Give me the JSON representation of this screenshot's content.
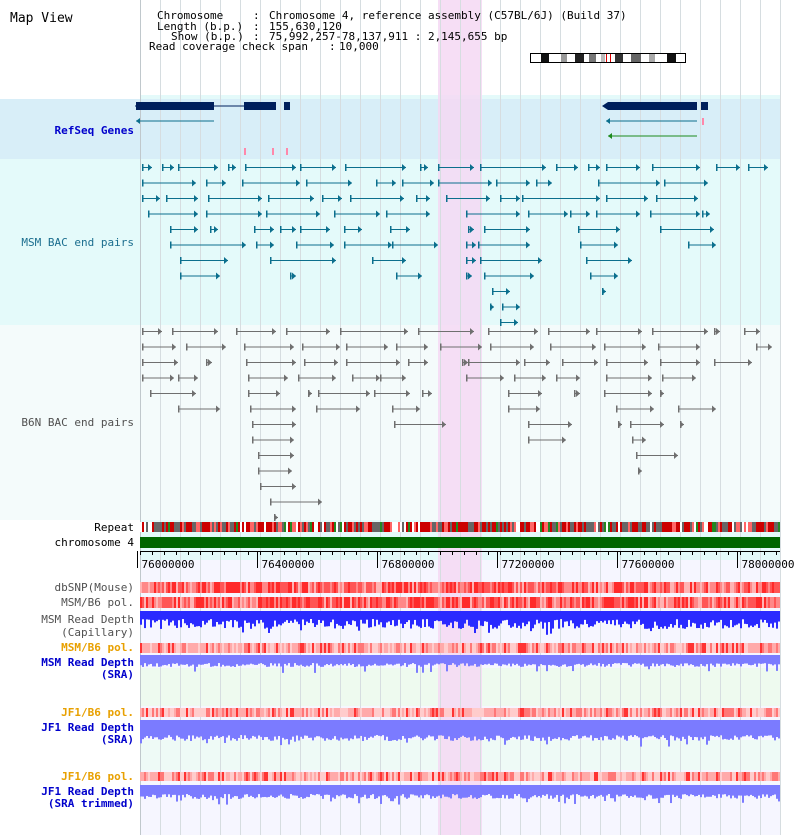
{
  "title": "Map View",
  "info": {
    "chromosome_label": "Chromosome",
    "chromosome_value": "Chromosome 4, reference assembly (C57BL/6J) (Build 37)",
    "length_label": "Length (b.p.)",
    "length_value": "155,630,120",
    "show_label": "Show (b.p.)",
    "show_value": "75,992,257-78,137,911 : 2,145,655 bp",
    "coverage_label": "Read coverage check span",
    "coverage_value": "10,000"
  },
  "tracks": {
    "refseq": "RefSeq Genes",
    "msm_bac": "MSM BAC end pairs",
    "b6n_bac": "B6N BAC end pairs",
    "repeat": "Repeat",
    "chromosome": "chromosome 4",
    "dbsnp": "dbSNP(Mouse)",
    "msm_b6_pol_1": "MSM/B6 pol.",
    "msm_depth_cap_1": "MSM Read Depth",
    "msm_depth_cap_2": "(Capillary)",
    "msm_b6_pol_2": "MSM/B6 pol.",
    "msm_depth_sra_1": "MSM Read Depth",
    "msm_depth_sra_2": "(SRA)",
    "jf1_b6_pol_1": "JF1/B6 pol.",
    "jf1_depth_sra_1": "JF1 Read Depth",
    "jf1_depth_sra_2": "(SRA)",
    "jf1_b6_pol_2": "JF1/B6 pol.",
    "jf1_depth_trim_1": "JF1 Read Depth",
    "jf1_depth_trim_2": "(SRA trimmed)"
  },
  "axis": {
    "ticks": [
      "76000000",
      "76400000",
      "76800000",
      "77200000",
      "77600000",
      "78000000"
    ]
  },
  "colors": {
    "highlight": "#f5d8f3",
    "refseq_bg": "#d8eef8",
    "track_bg": "#e4fafa",
    "b6n_bg": "#f4fbfb",
    "gene_dark": "#001f5c",
    "msm_feature": "#0b6f8d",
    "b6n_feature": "#6f6f6f",
    "label_blue": "#0000cc",
    "label_msm": "#1a6d8e",
    "label_gray": "#505050",
    "label_orange": "#e8a000",
    "chrom_green": "#006600"
  }
}
